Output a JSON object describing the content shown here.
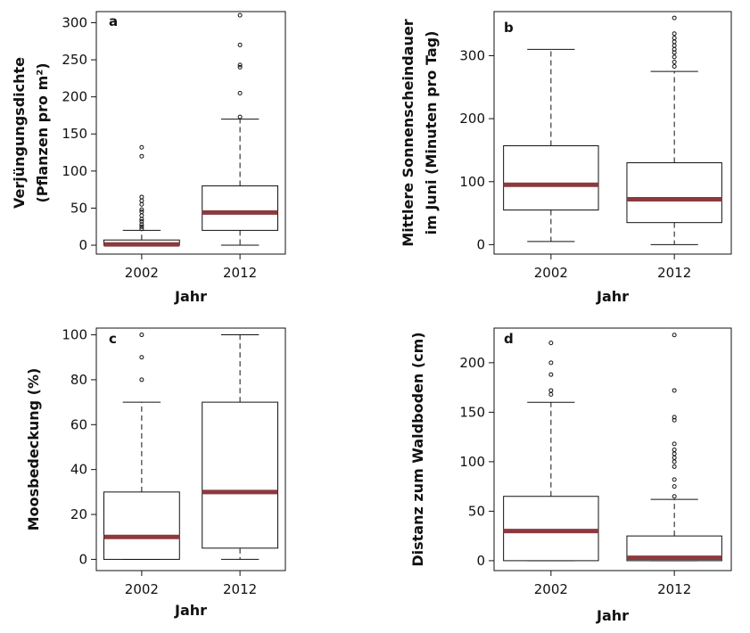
{
  "chart_data": [
    {
      "type": "box",
      "panel": "a",
      "categories": [
        "2002",
        "2012"
      ],
      "xlabel": "Jahr",
      "ylabel_lines": [
        "Verjüngungsdichte",
        "(Pflanzen pro m²)"
      ],
      "yticks": [
        0,
        50,
        100,
        150,
        200,
        250,
        300
      ],
      "ylim": [
        -12,
        315
      ],
      "boxes": [
        {
          "category": "2002",
          "whisker_low": 0,
          "q1": 0,
          "median": 1,
          "q3": 7,
          "whisker_high": 20,
          "outliers": [
            22,
            25,
            28,
            32,
            35,
            40,
            45,
            48,
            55,
            60,
            65,
            120,
            132
          ]
        },
        {
          "category": "2012",
          "whisker_low": 0,
          "q1": 20,
          "median": 44,
          "q3": 80,
          "whisker_high": 170,
          "outliers": [
            173,
            205,
            240,
            243,
            270,
            310
          ]
        }
      ]
    },
    {
      "type": "box",
      "panel": "b",
      "categories": [
        "2002",
        "2012"
      ],
      "xlabel": "Jahr",
      "ylabel_lines": [
        "Mittlere Sonnenscheindauer",
        "im Juni (Minuten pro Tag)"
      ],
      "yticks": [
        0,
        100,
        200,
        300
      ],
      "ylim": [
        -15,
        370
      ],
      "boxes": [
        {
          "category": "2002",
          "whisker_low": 5,
          "q1": 55,
          "median": 95,
          "q3": 157,
          "whisker_high": 310,
          "outliers": []
        },
        {
          "category": "2012",
          "whisker_low": 0,
          "q1": 35,
          "median": 72,
          "q3": 130,
          "whisker_high": 275,
          "outliers": [
            283,
            290,
            298,
            305,
            310,
            316,
            322,
            328,
            335,
            360
          ]
        }
      ]
    },
    {
      "type": "box",
      "panel": "c",
      "categories": [
        "2002",
        "2012"
      ],
      "xlabel": "Jahr",
      "ylabel_lines": [
        "Moosbedeckung (%)"
      ],
      "yticks": [
        0,
        20,
        40,
        60,
        80,
        100
      ],
      "ylim": [
        -5,
        103
      ],
      "boxes": [
        {
          "category": "2002",
          "whisker_low": 0,
          "q1": 0,
          "median": 10,
          "q3": 30,
          "whisker_high": 70,
          "outliers": [
            80,
            90,
            100
          ]
        },
        {
          "category": "2012",
          "whisker_low": 0,
          "q1": 5,
          "median": 30,
          "q3": 70,
          "whisker_high": 100,
          "outliers": []
        }
      ]
    },
    {
      "type": "box",
      "panel": "d",
      "categories": [
        "2002",
        "2012"
      ],
      "xlabel": "Jahr",
      "ylabel_lines": [
        "Distanz zum Waldboden (cm)"
      ],
      "yticks": [
        0,
        50,
        100,
        150,
        200
      ],
      "ylim": [
        -10,
        235
      ],
      "boxes": [
        {
          "category": "2002",
          "whisker_low": 0,
          "q1": 0,
          "median": 30,
          "q3": 65,
          "whisker_high": 160,
          "outliers": [
            168,
            172,
            188,
            200,
            220
          ]
        },
        {
          "category": "2012",
          "whisker_low": 0,
          "q1": 0,
          "median": 3,
          "q3": 25,
          "whisker_high": 62,
          "outliers": [
            65,
            75,
            82,
            95,
            100,
            104,
            108,
            112,
            118,
            142,
            145,
            172,
            228
          ]
        }
      ]
    }
  ],
  "colors": {
    "median": "#8b3a3e",
    "box_fill": "#ffffff",
    "stroke": "#111111"
  }
}
